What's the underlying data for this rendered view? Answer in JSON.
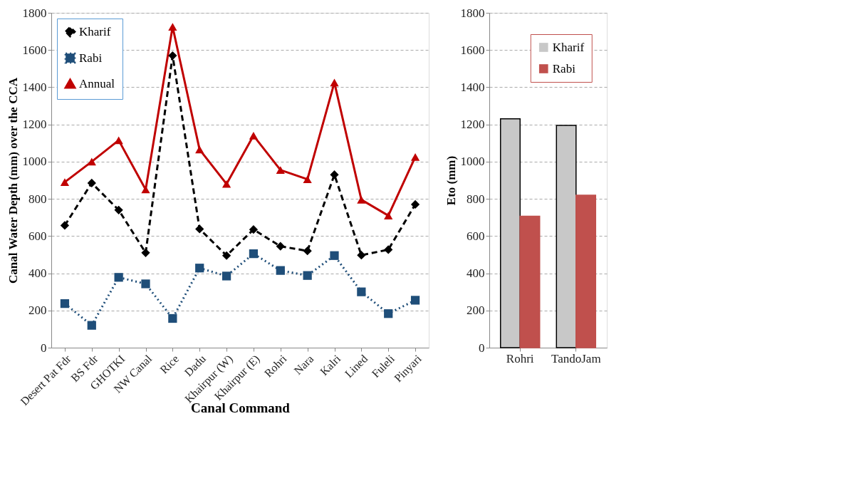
{
  "chart_data": [
    {
      "type": "line",
      "xlabel": "Canal Command",
      "ylabel": "Canal Water Depth (mm) over the CCA",
      "categories": [
        "Desert Pat Fdr",
        "BS Fdr",
        "GHOTKI",
        "NW Canal",
        "Rice",
        "Dadu",
        "Khairpur (W)",
        "Khairpur (E)",
        "Rohri",
        "Nara",
        "Kalri",
        "Lined",
        "Fuleli",
        "Pinyari"
      ],
      "series": [
        {
          "name": "Kharif",
          "color": "#000000",
          "line_style": "dashed",
          "marker": "diamond",
          "values": [
            657,
            885,
            740,
            510,
            1570,
            638,
            495,
            635,
            545,
            520,
            930,
            497,
            527,
            770
          ]
        },
        {
          "name": "Rabi",
          "color": "#1f4e79",
          "line_style": "dotted",
          "marker": "square",
          "values": [
            237,
            120,
            378,
            343,
            157,
            428,
            385,
            505,
            415,
            388,
            495,
            300,
            183,
            255
          ]
        },
        {
          "name": "Annual",
          "color": "#c00000",
          "line_style": "solid",
          "marker": "triangle",
          "values": [
            890,
            1000,
            1115,
            850,
            1725,
            1065,
            880,
            1140,
            955,
            905,
            1425,
            795,
            710,
            1025
          ]
        }
      ],
      "ylim": [
        0,
        1800
      ],
      "yticks": [
        0,
        200,
        400,
        600,
        800,
        1000,
        1200,
        1400,
        1600,
        1800
      ],
      "grid": "y",
      "legend": "top left"
    },
    {
      "type": "bar",
      "ylabel": "Eto (mm)",
      "categories": [
        "Rohri",
        "TandoJam"
      ],
      "series": [
        {
          "name": "Kharif",
          "color": "#c8c8c8",
          "values": [
            1230,
            1195
          ]
        },
        {
          "name": "Rabi",
          "color": "#c0504d",
          "values": [
            707,
            820
          ]
        }
      ],
      "ylim": [
        0,
        1800
      ],
      "yticks": [
        0,
        200,
        400,
        600,
        800,
        1000,
        1200,
        1400,
        1600,
        1800
      ],
      "grid": "y",
      "legend": "top"
    }
  ]
}
